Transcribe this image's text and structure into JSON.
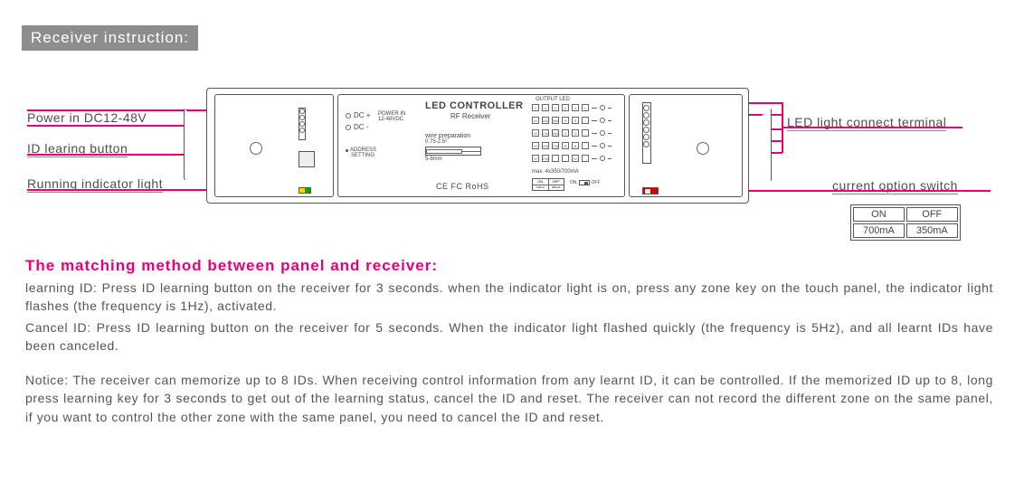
{
  "title": "Receiver instruction:",
  "callouts": {
    "power_in": "Power in DC12-48V",
    "id_learning": "ID learing button",
    "running_indicator": "Running indicator light",
    "led_terminal": "LED light connect terminal",
    "current_switch": "current option switch"
  },
  "device": {
    "title": "LED CONTROLLER",
    "subtitle": "RF Receiver",
    "dc_plus": "DC +",
    "dc_minus": "DC -",
    "power_in": "POWER IN",
    "power_range": "12-48VDC",
    "addr": "ADDRESS",
    "setting": "SETTING",
    "wire_prep": "wire preparation",
    "wire_range": "0.75-2.5²",
    "wire_len": "5-8mm",
    "cert": "CE  FC  RoHS",
    "output_led": "OUTPUT LED",
    "max_current": "max. 4x350/700mA",
    "on": "ON",
    "off": "OFF",
    "r1": [
      "V",
      "V",
      "V",
      "V",
      "V",
      "+"
    ],
    "r2": [
      "W",
      "WW",
      "NW",
      "R",
      "R",
      "-"
    ],
    "r3": [
      "W",
      "CW",
      "NW",
      "G",
      "G",
      "-"
    ],
    "r4": [
      "W",
      "WW",
      "CW",
      "B",
      "B",
      "-"
    ],
    "r5": [
      "W",
      "CW",
      "",
      "",
      "W",
      "-"
    ]
  },
  "option_table": {
    "on": "ON",
    "off": "OFF",
    "on_val": "700mA",
    "off_val": "350mA"
  },
  "heading": "The matching method between panel and receiver:",
  "para1": "learning ID: Press ID learning button on the receiver for 3 seconds.  when the indicator light is on,  press any zone key on the touch panel, the indicator light flashes (the frequency is 1Hz),  activated.",
  "para2": "Cancel ID: Press ID learning button on the receiver for 5 seconds.  When the indicator light flashed quickly (the frequency is 5Hz),  and all learnt IDs have been canceled.",
  "para3": "Notice: The receiver can memorize up to 8 IDs.  When receiving control information from any learnt ID,  it can be controlled.  If the memorized ID up to 8,  long press learning key for 3 seconds to get out of the learning status,  cancel the ID and reset.  The receiver can not record the different zone on the same panel,  if you want to control the other zone with the same panel,  you need to cancel the ID and reset.",
  "colors": {
    "pink": "#e6007e",
    "title_bg": "#8d8d8d",
    "text": "#555555"
  }
}
